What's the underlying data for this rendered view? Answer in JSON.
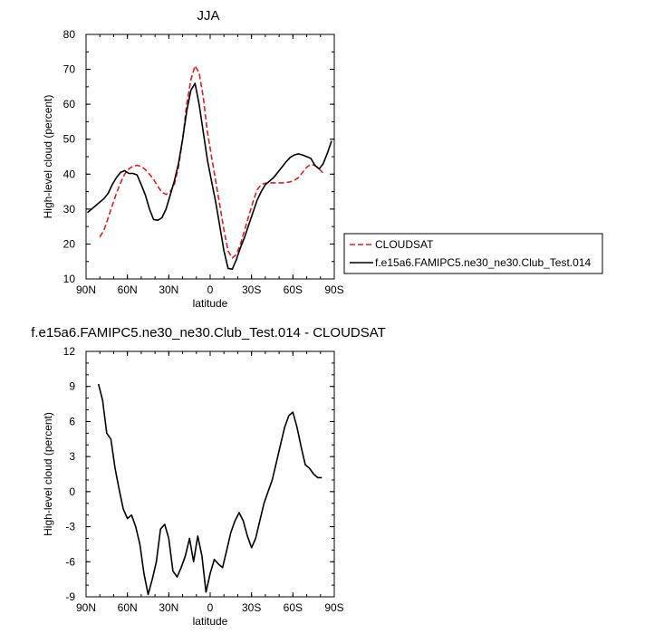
{
  "chart_data": [
    {
      "type": "line",
      "title": "JJA",
      "xlabel": "latitude",
      "ylabel": "High-level cloud (percent)",
      "xlim": [
        90,
        -90
      ],
      "ylim": [
        10,
        80
      ],
      "x_ticks": [
        90,
        60,
        30,
        0,
        -30,
        -60,
        -90
      ],
      "x_tick_labels": [
        "90N",
        "60N",
        "30N",
        "0",
        "30S",
        "60S",
        "90S"
      ],
      "y_ticks": [
        10,
        20,
        30,
        40,
        50,
        60,
        70,
        80
      ],
      "y_tick_labels": [
        "10",
        "20",
        "30",
        "40",
        "50",
        "60",
        "70",
        "80"
      ],
      "legend_placement": "right",
      "series": [
        {
          "name": "CLOUDSAT",
          "color": "#e8191a",
          "dash": "dashed",
          "x": [
            80,
            77,
            74,
            71,
            68,
            65,
            62,
            59,
            56,
            53,
            50,
            47,
            44,
            41,
            38,
            35,
            32,
            29,
            26,
            23,
            20,
            17,
            14,
            11,
            8,
            5,
            2,
            -1,
            -4,
            -7,
            -10,
            -13,
            -16,
            -19,
            -22,
            -25,
            -28,
            -31,
            -34,
            -37,
            -40,
            -43,
            -46,
            -49,
            -52,
            -55,
            -58,
            -61,
            -64,
            -67,
            -70,
            -73,
            -76,
            -79,
            -82
          ],
          "y": [
            22,
            24,
            27.5,
            31,
            34.5,
            37.5,
            40,
            41.5,
            42.3,
            42.5,
            42.2,
            41.3,
            40,
            38.5,
            36.5,
            34.8,
            34.2,
            35,
            37,
            42,
            50,
            60,
            67,
            71,
            69,
            62,
            52,
            45,
            38,
            31,
            24,
            18,
            16,
            17,
            20,
            24,
            28,
            32,
            35.5,
            37,
            37.4,
            37.5,
            37.5,
            37.5,
            37.5,
            37.6,
            37.8,
            38.2,
            39,
            40.5,
            42,
            42.8,
            42.5,
            41.5,
            40.3
          ]
        },
        {
          "name": "f.e15a6.FAMIPC5.ne30_ne30.Club_Test.014",
          "color": "#000000",
          "dash": "solid",
          "x": [
            89,
            86,
            83,
            80,
            77,
            74,
            71,
            68,
            65,
            62,
            59,
            56,
            53,
            50,
            47,
            44,
            41,
            38,
            35,
            32,
            29,
            26,
            23,
            20,
            17,
            14,
            11,
            8,
            5,
            2,
            -1,
            -4,
            -7,
            -10,
            -13,
            -16,
            -19,
            -22,
            -25,
            -28,
            -31,
            -34,
            -37,
            -40,
            -43,
            -46,
            -49,
            -52,
            -55,
            -58,
            -61,
            -64,
            -67,
            -70,
            -73,
            -76,
            -79,
            -82,
            -85,
            -88
          ],
          "y": [
            29,
            30,
            31,
            32,
            33,
            34.5,
            37,
            39,
            40.5,
            41,
            40.2,
            40.2,
            39.8,
            37,
            34,
            30,
            27,
            26.8,
            27.5,
            30,
            34,
            38,
            43,
            50,
            58,
            64,
            66,
            60,
            52,
            44,
            38,
            32,
            25,
            18,
            13,
            12.8,
            15.5,
            19,
            22,
            25.5,
            29,
            32.5,
            35,
            37,
            38,
            39,
            40.5,
            42,
            43.5,
            44.8,
            45.5,
            45.8,
            45.5,
            45,
            44.5,
            42.5,
            41.5,
            43,
            46,
            49.5
          ]
        }
      ]
    },
    {
      "type": "line",
      "title": "f.e15a6.FAMIPC5.ne30_ne30.Club_Test.014 - CLOUDSAT",
      "xlabel": "latitude",
      "ylabel": "High-level cloud (percent)",
      "xlim": [
        90,
        -90
      ],
      "ylim": [
        -9,
        12
      ],
      "x_ticks": [
        90,
        60,
        30,
        0,
        -30,
        -60,
        -90
      ],
      "x_tick_labels": [
        "90N",
        "60N",
        "30N",
        "0",
        "30S",
        "60S",
        "90S"
      ],
      "y_ticks": [
        -9,
        -6,
        -3,
        0,
        3,
        6,
        9,
        12
      ],
      "y_tick_labels": [
        "-9",
        "-6",
        "-3",
        "0",
        "3",
        "6",
        "9",
        "12"
      ],
      "series": [
        {
          "color": "#000000",
          "dash": "solid",
          "x": [
            81,
            78,
            75,
            72,
            69,
            66,
            63,
            60,
            57,
            54,
            51,
            48,
            45,
            42,
            39,
            36,
            33,
            30,
            27,
            24,
            21,
            18,
            15,
            12,
            9,
            6,
            3,
            0,
            -3,
            -6,
            -9,
            -12,
            -15,
            -18,
            -21,
            -24,
            -27,
            -30,
            -33,
            -36,
            -39,
            -42,
            -45,
            -48,
            -51,
            -54,
            -57,
            -60,
            -63,
            -66,
            -69,
            -72,
            -75,
            -78,
            -81
          ],
          "y": [
            9.2,
            7.8,
            5.0,
            4.5,
            2.0,
            0.2,
            -1.5,
            -2.3,
            -2.0,
            -3.0,
            -4.5,
            -7.0,
            -8.8,
            -7.5,
            -6.0,
            -3.2,
            -2.8,
            -4.0,
            -6.8,
            -7.3,
            -6.5,
            -5.5,
            -4.0,
            -6.0,
            -3.8,
            -5.5,
            -8.6,
            -7.0,
            -5.8,
            -6.2,
            -6.5,
            -5.0,
            -3.5,
            -2.5,
            -1.8,
            -2.5,
            -3.8,
            -4.8,
            -4.0,
            -2.5,
            -1.0,
            0.0,
            1.0,
            2.5,
            4.0,
            5.5,
            6.5,
            6.8,
            5.5,
            3.8,
            2.3,
            2.0,
            1.5,
            1.2,
            1.2
          ]
        }
      ]
    }
  ]
}
